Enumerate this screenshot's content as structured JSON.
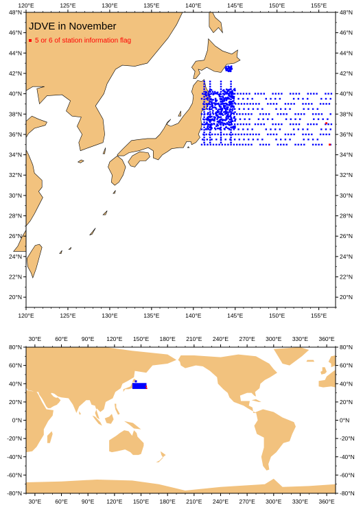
{
  "title": "JDVE in November",
  "legend": {
    "label": "5 or 6 of station information flag",
    "color": "#ff0000"
  },
  "colors": {
    "land": "#f2c27e",
    "station": "#0000ff",
    "flagged": "#ff0000",
    "ocean": "#ffffff"
  },
  "regional_map": {
    "lon_range": [
      120,
      157
    ],
    "lat_range": [
      19,
      48
    ],
    "lon_ticks": [
      "120°E",
      "125°E",
      "130°E",
      "135°E",
      "140°E",
      "145°E",
      "150°E",
      "155°E"
    ],
    "lat_ticks": [
      "20°N",
      "22°N",
      "24°N",
      "26°N",
      "28°N",
      "30°N",
      "32°N",
      "34°N",
      "36°N",
      "38°N",
      "40°N",
      "42°N",
      "44°N",
      "46°N",
      "48°N"
    ]
  },
  "global_map": {
    "lon_range": [
      20,
      370
    ],
    "lat_range": [
      -80,
      80
    ],
    "lon_ticks": [
      "30°E",
      "60°E",
      "90°E",
      "120°E",
      "150°E",
      "180°E",
      "210°E",
      "240°E",
      "270°E",
      "300°E",
      "330°E",
      "360°E"
    ],
    "lat_ticks": [
      "80°N",
      "60°N",
      "40°N",
      "20°N",
      "0°N",
      "-20°N",
      "-40°N",
      "-60°N",
      "-80°N"
    ]
  },
  "stations": {
    "dense_cluster": {
      "lon": [
        141.5,
        145
      ],
      "lat": [
        36.5,
        40.5
      ]
    },
    "grid_rows_lat": [
      35,
      35.5,
      36,
      36.5,
      37,
      37.5,
      38,
      38.5,
      39,
      39.5,
      40
    ],
    "grid_lon": [
      141,
      156.5
    ],
    "hokkaido_cluster": {
      "lon": [
        143.8,
        144.6
      ],
      "lat": [
        42.2,
        42.7
      ]
    },
    "flagged": [
      {
        "lon": 155.9,
        "lat": 37.1
      },
      {
        "lon": 156.3,
        "lat": 35.0
      }
    ]
  }
}
